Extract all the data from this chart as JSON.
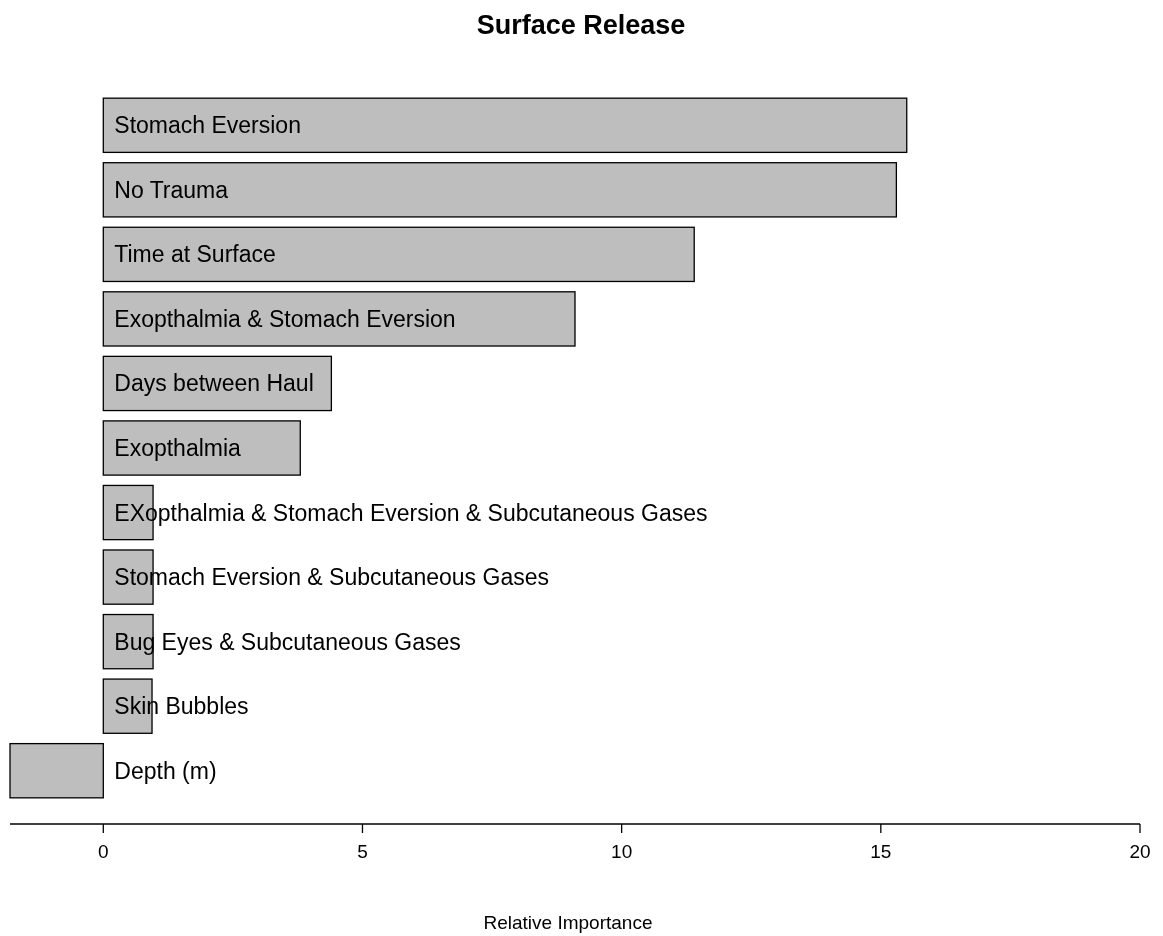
{
  "chart_data": {
    "type": "bar",
    "orientation": "horizontal",
    "title": "Surface Release",
    "xlabel": "Relative Importance",
    "categories": [
      "Stomach Eversion",
      "No Trauma",
      "Time at Surface",
      "Exopthalmia & Stomach Eversion",
      "Days between Haul",
      "Exopthalmia",
      "EXopthalmia & Stomach Eversion & Subcutaneous Gases",
      "Stomach Eversion & Subcutaneous Gases",
      "Bug Eyes & Subcutaneous Gases",
      "Skin Bubbles",
      "Depth (m)"
    ],
    "values": [
      15.5,
      15.3,
      11.4,
      9.1,
      4.4,
      3.8,
      0.96,
      0.96,
      0.96,
      0.94,
      -1.8
    ],
    "color": "#bebebe",
    "xlim": [
      -1.8,
      20
    ],
    "xticks": [
      0,
      5,
      10,
      15,
      20
    ],
    "grid": false
  }
}
